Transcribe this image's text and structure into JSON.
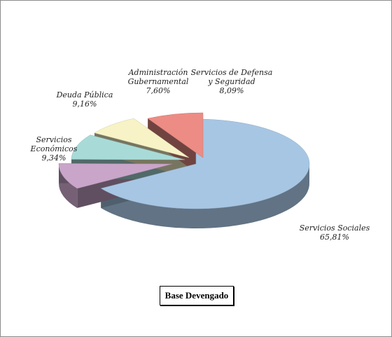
{
  "chart_data": {
    "type": "pie",
    "style": "3d-exploded",
    "slices": [
      {
        "label_lines": [
          "Servicios Sociales",
          "65,81%"
        ],
        "value": 65.81,
        "color": "#a7c6e4"
      },
      {
        "label_lines": [
          "Servicios",
          "Económicos",
          "9,34%"
        ],
        "value": 9.34,
        "color": "#c9a5c9"
      },
      {
        "label_lines": [
          "Deuda Pública",
          "9,16%"
        ],
        "value": 9.16,
        "color": "#a8dbd8"
      },
      {
        "label_lines": [
          "Administración",
          "Gubernamental",
          "7,60%"
        ],
        "value": 7.6,
        "color": "#f7f3c6"
      },
      {
        "label_lines": [
          "Servicios de Defensa",
          "y  Seguridad",
          "8,09%"
        ],
        "value": 8.09,
        "color": "#ec8c85"
      }
    ]
  },
  "legend_box": {
    "text": "Base Devengado"
  }
}
